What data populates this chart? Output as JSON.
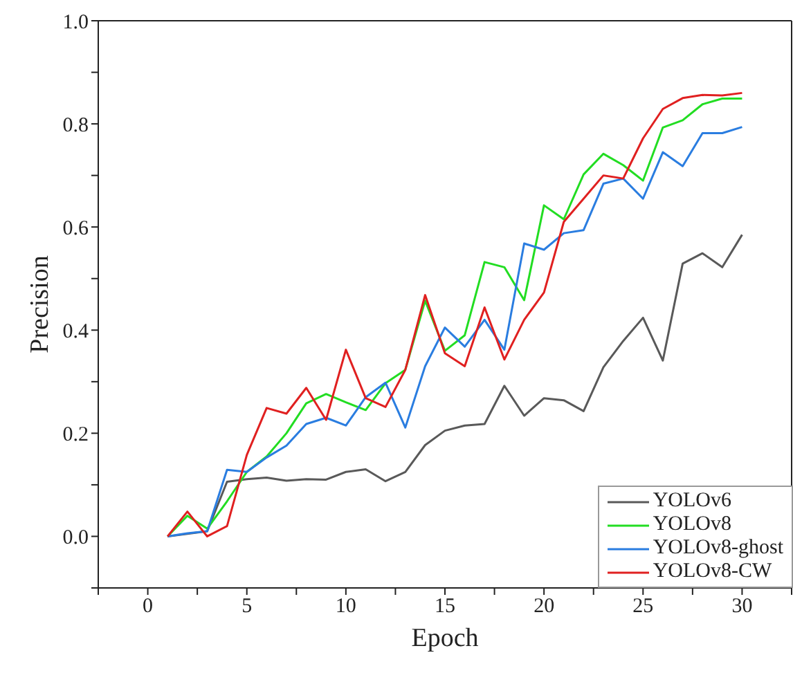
{
  "chart_data": {
    "type": "line",
    "xlabel": "Epoch",
    "ylabel": "Precision",
    "x": [
      1,
      2,
      3,
      4,
      5,
      6,
      7,
      8,
      9,
      10,
      11,
      12,
      13,
      14,
      15,
      16,
      17,
      18,
      19,
      20,
      21,
      22,
      23,
      24,
      25,
      26,
      27,
      28,
      29,
      30
    ],
    "series": [
      {
        "name": "YOLOv6",
        "color": "#595959",
        "values": [
          0,
          0.005,
          0.01,
          0.106,
          0.111,
          0.114,
          0.108,
          0.111,
          0.11,
          0.125,
          0.13,
          0.107,
          0.125,
          0.177,
          0.205,
          0.215,
          0.218,
          0.292,
          0.234,
          0.268,
          0.264,
          0.243,
          0.328,
          0.379,
          0.424,
          0.341,
          0.529,
          0.549,
          0.522,
          0.585
        ]
      },
      {
        "name": "YOLOv8",
        "color": "#22dd22",
        "values": [
          0,
          0.04,
          0.015,
          0.068,
          0.125,
          0.155,
          0.2,
          0.258,
          0.276,
          0.26,
          0.245,
          0.297,
          0.323,
          0.457,
          0.36,
          0.39,
          0.532,
          0.522,
          0.458,
          0.642,
          0.615,
          0.702,
          0.742,
          0.72,
          0.69,
          0.793,
          0.807,
          0.838,
          0.849,
          0.849
        ]
      },
      {
        "name": "YOLOv8-ghost",
        "color": "#2a7de0",
        "values": [
          0,
          0.006,
          0.01,
          0.129,
          0.125,
          0.153,
          0.176,
          0.218,
          0.23,
          0.215,
          0.27,
          0.298,
          0.211,
          0.33,
          0.405,
          0.368,
          0.42,
          0.362,
          0.568,
          0.556,
          0.588,
          0.594,
          0.684,
          0.694,
          0.655,
          0.745,
          0.718,
          0.782,
          0.782,
          0.794
        ]
      },
      {
        "name": "YOLOv8-CW",
        "color": "#e02020",
        "values": [
          0,
          0.048,
          0,
          0.02,
          0.158,
          0.249,
          0.238,
          0.288,
          0.226,
          0.362,
          0.268,
          0.251,
          0.323,
          0.468,
          0.355,
          0.33,
          0.444,
          0.343,
          0.42,
          0.473,
          0.61,
          0.655,
          0.7,
          0.694,
          0.772,
          0.829,
          0.85,
          0.856,
          0.855,
          0.86
        ]
      }
    ],
    "xlim": [
      -2.5,
      32.5
    ],
    "xticks": [
      {
        "value": -2.5,
        "label": null
      },
      0,
      {
        "value": 2.5,
        "label": null
      },
      5,
      {
        "value": 7.5,
        "label": null
      },
      10,
      {
        "value": 12.5,
        "label": null
      },
      15,
      {
        "value": 17.5,
        "label": null
      },
      20,
      {
        "value": 22.5,
        "label": null
      },
      25,
      {
        "value": 27.5,
        "label": null
      },
      30,
      {
        "value": 32.5,
        "label": null
      }
    ],
    "ylim": [
      -0.1,
      1.0
    ],
    "yticks": [
      {
        "value": -0.1,
        "label": null
      },
      {
        "value": 0,
        "label": "0.0"
      },
      {
        "value": 0.1,
        "label": null
      },
      {
        "value": 0.2,
        "label": "0.2"
      },
      {
        "value": 0.3,
        "label": null
      },
      {
        "value": 0.4,
        "label": "0.4"
      },
      {
        "value": 0.5,
        "label": null
      },
      {
        "value": 0.6,
        "label": "0.6"
      },
      {
        "value": 0.7,
        "label": null
      },
      {
        "value": 0.8,
        "label": "0.8"
      },
      {
        "value": 0.9,
        "label": null
      },
      {
        "value": 1.0,
        "label": "1.0"
      }
    ],
    "legend": "bottom right",
    "grid": false,
    "marker": "none",
    "line_style": "solid"
  }
}
